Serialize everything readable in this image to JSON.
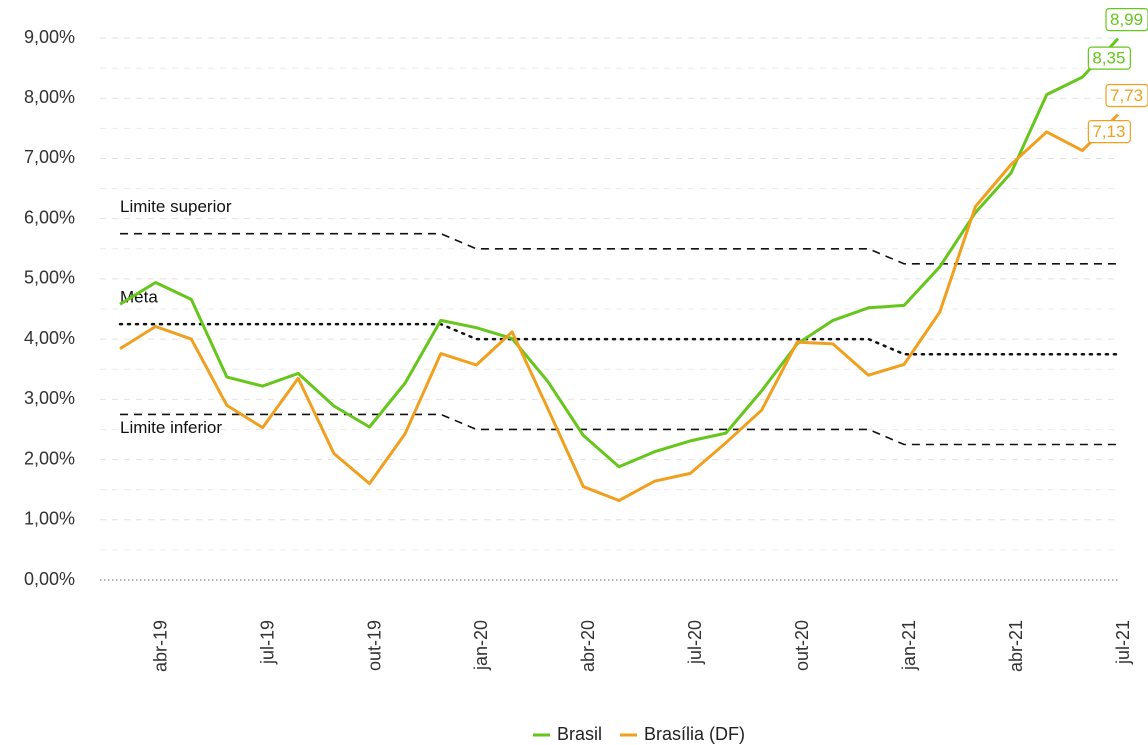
{
  "chart_data": {
    "type": "line",
    "categories": [
      null,
      "abr-19",
      null,
      null,
      "jul-19",
      null,
      null,
      "out-19",
      null,
      null,
      "jan-20",
      null,
      null,
      "abr-20",
      null,
      null,
      "jul-20",
      null,
      null,
      "out-20",
      null,
      null,
      "jan-21",
      null,
      null,
      "abr-21",
      null,
      null,
      "jul-21"
    ],
    "series": [
      {
        "name": "Brasil",
        "color": "#66c61c",
        "values": [
          4.58,
          4.94,
          4.66,
          3.37,
          3.22,
          3.43,
          2.89,
          2.54,
          3.27,
          4.31,
          4.19,
          4.01,
          3.3,
          2.4,
          1.88,
          2.13,
          2.31,
          2.44,
          3.14,
          3.92,
          4.31,
          4.52,
          4.56,
          5.2,
          6.1,
          6.76,
          8.06,
          8.35,
          8.99
        ],
        "value_labels": [
          null,
          null,
          null,
          null,
          null,
          null,
          null,
          null,
          null,
          null,
          null,
          null,
          null,
          null,
          null,
          null,
          null,
          null,
          null,
          null,
          null,
          null,
          null,
          null,
          null,
          null,
          null,
          "8,35",
          "8,99"
        ]
      },
      {
        "name": "Brasília (DF)",
        "color": "#f0a01e",
        "values": [
          3.84,
          4.21,
          4.0,
          2.9,
          2.53,
          3.35,
          2.1,
          1.6,
          2.43,
          3.76,
          3.57,
          4.12,
          2.85,
          1.55,
          1.32,
          1.64,
          1.77,
          2.28,
          2.82,
          3.95,
          3.92,
          3.4,
          3.58,
          4.45,
          6.2,
          6.9,
          7.44,
          7.13,
          7.73
        ],
        "value_labels": [
          null,
          null,
          null,
          null,
          null,
          null,
          null,
          null,
          null,
          null,
          null,
          null,
          null,
          null,
          null,
          null,
          null,
          null,
          null,
          null,
          null,
          null,
          null,
          null,
          null,
          null,
          null,
          "7,13",
          "7,73"
        ]
      }
    ],
    "reference_lines": [
      {
        "name": "Limite superior",
        "style": "dashed",
        "label_position": "above",
        "values": [
          5.75,
          5.75,
          5.75,
          5.75,
          5.75,
          5.75,
          5.75,
          5.75,
          5.75,
          5.75,
          5.5,
          5.5,
          5.5,
          5.5,
          5.5,
          5.5,
          5.5,
          5.5,
          5.5,
          5.5,
          5.5,
          5.5,
          5.25,
          5.25,
          5.25,
          5.25,
          5.25,
          5.25,
          5.25
        ]
      },
      {
        "name": "Meta",
        "style": "dotted",
        "label_position": "above",
        "values": [
          4.25,
          4.25,
          4.25,
          4.25,
          4.25,
          4.25,
          4.25,
          4.25,
          4.25,
          4.25,
          4.0,
          4.0,
          4.0,
          4.0,
          4.0,
          4.0,
          4.0,
          4.0,
          4.0,
          4.0,
          4.0,
          4.0,
          3.75,
          3.75,
          3.75,
          3.75,
          3.75,
          3.75,
          3.75
        ]
      },
      {
        "name": "Limite inferior",
        "style": "dashed",
        "label_position": "below",
        "values": [
          2.75,
          2.75,
          2.75,
          2.75,
          2.75,
          2.75,
          2.75,
          2.75,
          2.75,
          2.75,
          2.5,
          2.5,
          2.5,
          2.5,
          2.5,
          2.5,
          2.5,
          2.5,
          2.5,
          2.5,
          2.5,
          2.5,
          2.25,
          2.25,
          2.25,
          2.25,
          2.25,
          2.25,
          2.25
        ]
      }
    ],
    "ylim": [
      0,
      9
    ],
    "yticks": [
      {
        "value": 0,
        "label": "0,00%"
      },
      {
        "value": 1,
        "label": "1,00%"
      },
      {
        "value": 2,
        "label": "2,00%"
      },
      {
        "value": 3,
        "label": "3,00%"
      },
      {
        "value": 4,
        "label": "4,00%"
      },
      {
        "value": 5,
        "label": "5,00%"
      },
      {
        "value": 6,
        "label": "6,00%"
      },
      {
        "value": 7,
        "label": "7,00%"
      },
      {
        "value": 8,
        "label": "8,00%"
      },
      {
        "value": 9,
        "label": "9,00%"
      }
    ],
    "grid": true,
    "minor_grid": true,
    "legend": "bottom"
  }
}
